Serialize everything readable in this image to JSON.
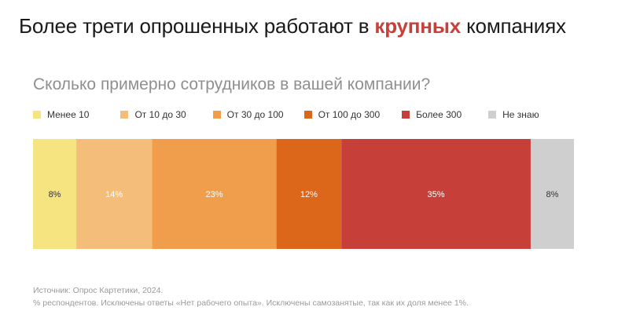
{
  "header": {
    "title_before": "Более трети опрошенных работают в ",
    "title_accent": "крупных",
    "title_after": " компаниях"
  },
  "question": "Сколько примерно сотрудников в вашей компании?",
  "colors": {
    "accent": "#c8403a"
  },
  "chart_data": {
    "type": "bar",
    "orientation": "horizontal-stacked-100",
    "title": "Сколько примерно сотрудников в вашей компании?",
    "unit": "%",
    "legend_position": "top-left",
    "grid": false,
    "series": [
      {
        "name": "Менее 10",
        "value": 8,
        "label": "8%",
        "color": "#f5e47f",
        "label_color": "#333333"
      },
      {
        "name": "От 10 до 30",
        "value": 14,
        "label": "14%",
        "color": "#f4be7a",
        "label_color": "#ffffff"
      },
      {
        "name": "От 30 до 100",
        "value": 23,
        "label": "23%",
        "color": "#f09e4c",
        "label_color": "#ffffff"
      },
      {
        "name": "От 100 до 300",
        "value": 12,
        "label": "12%",
        "color": "#dc6619",
        "label_color": "#ffffff"
      },
      {
        "name": "Более 300",
        "value": 35,
        "label": "35%",
        "color": "#c63f38",
        "label_color": "#ffffff"
      },
      {
        "name": "Не знаю",
        "value": 8,
        "label": "8%",
        "color": "#cfcfcf",
        "label_color": "#333333"
      }
    ]
  },
  "footer": {
    "source": "Источник: Опрос Картетики, 2024.",
    "note": "% респондентов. Исключены ответы «Нет рабочего опыта». Исключены самозанятые, так как их доля менее 1%."
  }
}
